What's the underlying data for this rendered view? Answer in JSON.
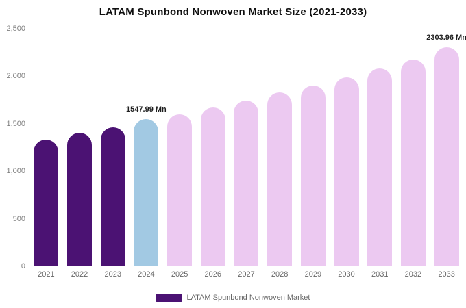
{
  "legend": {
    "label": "LATAM Spunbond Nonwoven Market",
    "color": "#4b1273"
  },
  "chart_data": {
    "type": "bar",
    "title": "LATAM Spunbond Nonwoven Market Size (2021-2033)",
    "categories": [
      "2021",
      "2022",
      "2023",
      "2024",
      "2025",
      "2026",
      "2027",
      "2028",
      "2029",
      "2030",
      "2031",
      "2032",
      "2033"
    ],
    "values": [
      1335,
      1402,
      1466,
      1547.99,
      1598,
      1668,
      1742,
      1828,
      1902,
      1992,
      2082,
      2178,
      2303.96
    ],
    "bar_colors": [
      "#4b1273",
      "#4b1273",
      "#4b1273",
      "#a2c9e3",
      "#ecc9f1",
      "#ecc9f1",
      "#ecc9f1",
      "#ecc9f1",
      "#ecc9f1",
      "#ecc9f1",
      "#ecc9f1",
      "#ecc9f1",
      "#ecc9f1"
    ],
    "annotations": [
      {
        "category": "2024",
        "text": "1547.99 Mn"
      },
      {
        "category": "2033",
        "text": "2303.96 Mn"
      }
    ],
    "xlabel": "",
    "ylabel": "",
    "ylim": [
      0,
      2500
    ],
    "yticks": [
      "0",
      "500",
      "1,000",
      "1,500",
      "2,000",
      "2,500"
    ],
    "grid": false,
    "legend_position": "bottom"
  }
}
